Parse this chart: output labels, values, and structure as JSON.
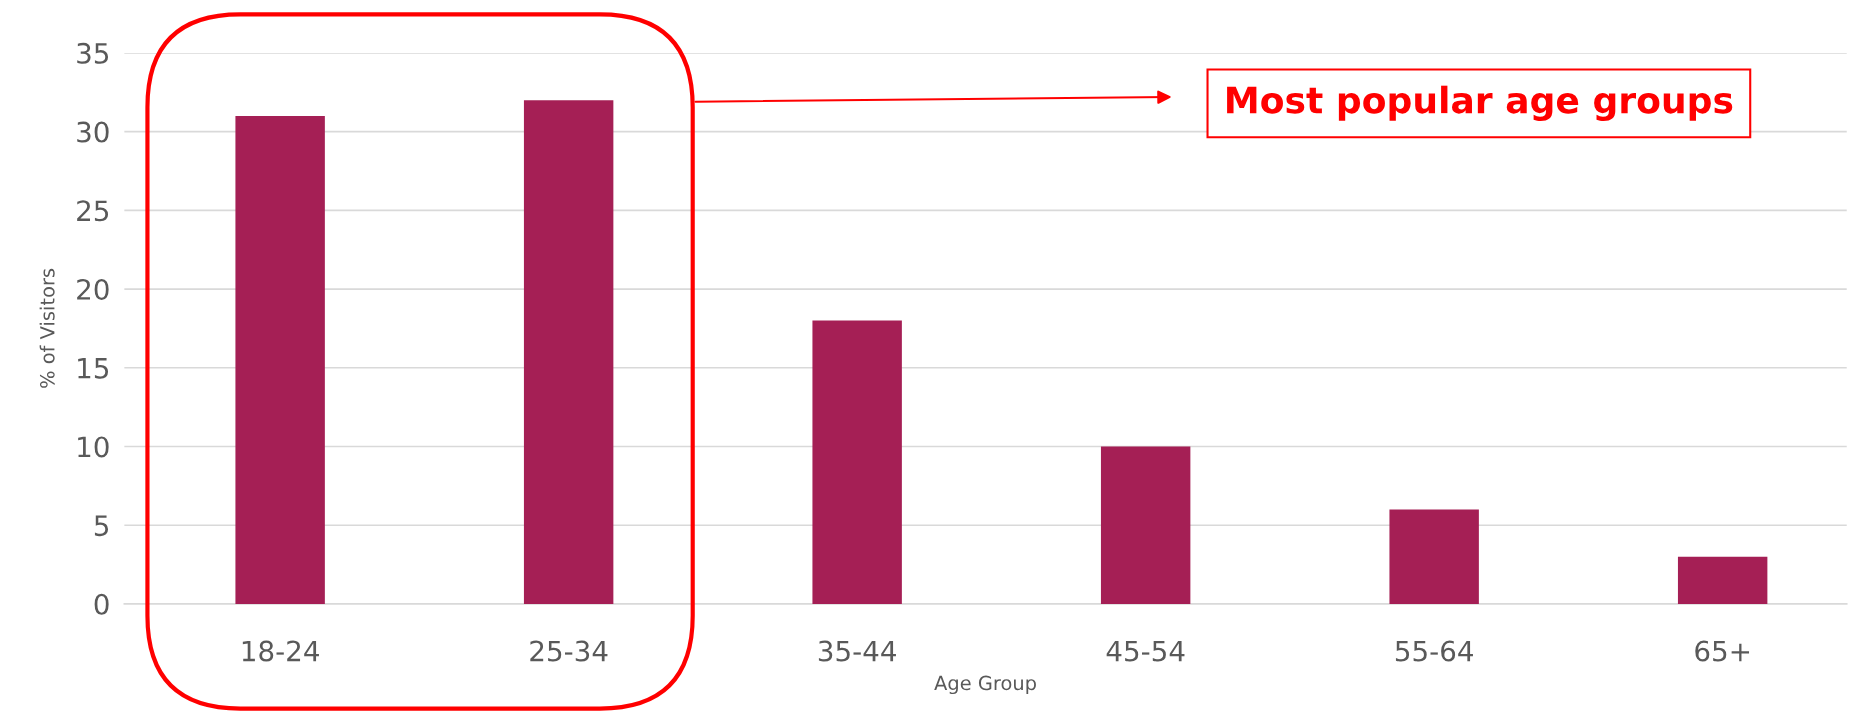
{
  "chart_data": {
    "type": "bar",
    "xlabel": "Age Group",
    "ylabel": "% of Visitors",
    "categories": [
      "18-24",
      "25-34",
      "35-44",
      "45-54",
      "55-64",
      "65+"
    ],
    "values": [
      31,
      32,
      18,
      10,
      6,
      3
    ],
    "color": "#a51f55",
    "ylim": [
      0,
      35
    ],
    "yticks": [
      0,
      5,
      10,
      15,
      20,
      25,
      30,
      35
    ],
    "grid": "y",
    "annotations": [
      "Most popular age groups"
    ]
  }
}
